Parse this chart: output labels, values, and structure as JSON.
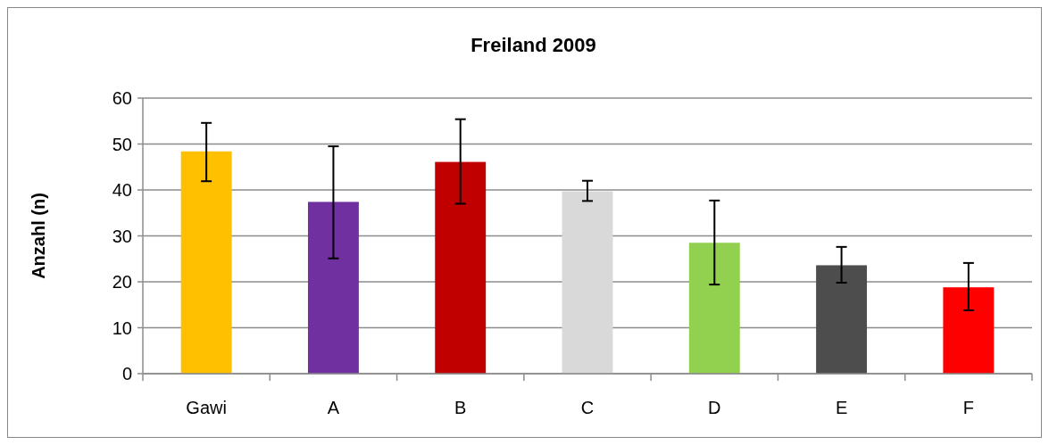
{
  "chart_data": {
    "type": "bar",
    "title": "Freiland 2009",
    "ylabel": "Anzahl (n)",
    "categories": [
      "Gawi",
      "A",
      "B",
      "C",
      "D",
      "E",
      "F"
    ],
    "values": [
      48.4,
      37.4,
      46.1,
      39.7,
      28.5,
      23.6,
      18.8
    ],
    "colors": [
      "#ffc000",
      "#7030a0",
      "#c00000",
      "#d9d9d9",
      "#92d050",
      "#4d4d4d",
      "#ff0000"
    ],
    "errors": [
      [
        41.9,
        54.6
      ],
      [
        25.1,
        49.5
      ],
      [
        37.0,
        55.4
      ],
      [
        37.6,
        42.0
      ],
      [
        19.4,
        37.7
      ],
      [
        19.8,
        27.6
      ],
      [
        13.8,
        24.1
      ]
    ],
    "ylim": [
      0,
      60
    ],
    "yticks": [
      0,
      10,
      20,
      30,
      40,
      50,
      60
    ],
    "grid": "y"
  }
}
